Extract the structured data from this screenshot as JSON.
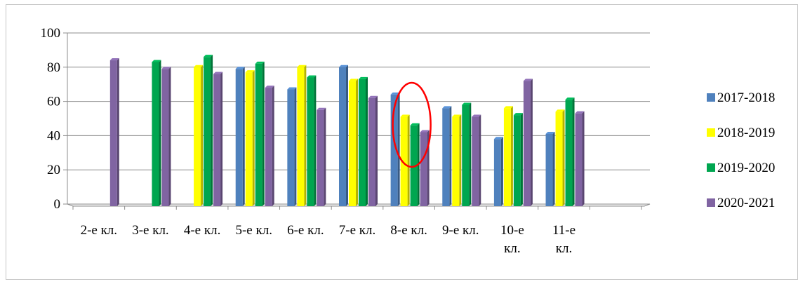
{
  "chart_data": {
    "type": "bar",
    "title": "",
    "xlabel": "",
    "ylabel": "",
    "ylim": [
      0,
      100
    ],
    "yticks": [
      0,
      20,
      40,
      60,
      80,
      100
    ],
    "grid": true,
    "legend": "right",
    "categories": [
      [
        "2-е кл."
      ],
      [
        "3-е кл."
      ],
      [
        "4-е кл."
      ],
      [
        "5-е кл."
      ],
      [
        "6-е кл."
      ],
      [
        "7-е кл."
      ],
      [
        "8-е кл."
      ],
      [
        "9-е кл."
      ],
      [
        "10-е",
        "кл."
      ],
      [
        "11-е",
        "кл."
      ],
      [
        ""
      ]
    ],
    "series": [
      {
        "name": "2017-2018",
        "color": "#4f81bd",
        "values": [
          null,
          null,
          null,
          79,
          67,
          80,
          64,
          56,
          38,
          41,
          null
        ]
      },
      {
        "name": "2018-2019",
        "color": "#ffff00",
        "values": [
          null,
          null,
          80,
          77,
          80,
          72,
          51,
          51,
          56,
          54,
          null
        ]
      },
      {
        "name": "2019-2020",
        "color": "#00a650",
        "values": [
          null,
          83,
          86,
          82,
          74,
          73,
          46,
          58,
          52,
          61,
          null
        ]
      },
      {
        "name": "2020-2021",
        "color": "#8064a2",
        "values": [
          84,
          79,
          76,
          68,
          55,
          62,
          42,
          51,
          72,
          53,
          null
        ]
      }
    ],
    "annotation": {
      "type": "ellipse",
      "color": "#ff0000",
      "category_index": 6
    }
  }
}
